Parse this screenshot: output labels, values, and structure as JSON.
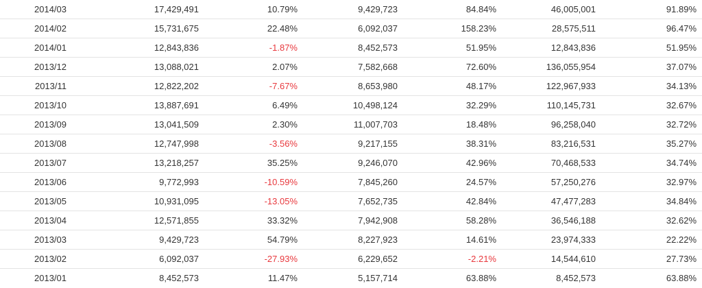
{
  "colors": {
    "text": "#333333",
    "negative": "#e8383d",
    "row_border": "#e3e3e3"
  },
  "rows": [
    {
      "period": "2014/03",
      "value_a": "17,429,491",
      "change_a": "10.79%",
      "value_b": "9,429,723",
      "change_b": "84.84%",
      "value_c": "46,005,001",
      "change_c": "91.89%"
    },
    {
      "period": "2014/02",
      "value_a": "15,731,675",
      "change_a": "22.48%",
      "value_b": "6,092,037",
      "change_b": "158.23%",
      "value_c": "28,575,511",
      "change_c": "96.47%"
    },
    {
      "period": "2014/01",
      "value_a": "12,843,836",
      "change_a": "-1.87%",
      "value_b": "8,452,573",
      "change_b": "51.95%",
      "value_c": "12,843,836",
      "change_c": "51.95%"
    },
    {
      "period": "2013/12",
      "value_a": "13,088,021",
      "change_a": "2.07%",
      "value_b": "7,582,668",
      "change_b": "72.60%",
      "value_c": "136,055,954",
      "change_c": "37.07%"
    },
    {
      "period": "2013/11",
      "value_a": "12,822,202",
      "change_a": "-7.67%",
      "value_b": "8,653,980",
      "change_b": "48.17%",
      "value_c": "122,967,933",
      "change_c": "34.13%"
    },
    {
      "period": "2013/10",
      "value_a": "13,887,691",
      "change_a": "6.49%",
      "value_b": "10,498,124",
      "change_b": "32.29%",
      "value_c": "110,145,731",
      "change_c": "32.67%"
    },
    {
      "period": "2013/09",
      "value_a": "13,041,509",
      "change_a": "2.30%",
      "value_b": "11,007,703",
      "change_b": "18.48%",
      "value_c": "96,258,040",
      "change_c": "32.72%"
    },
    {
      "period": "2013/08",
      "value_a": "12,747,998",
      "change_a": "-3.56%",
      "value_b": "9,217,155",
      "change_b": "38.31%",
      "value_c": "83,216,531",
      "change_c": "35.27%"
    },
    {
      "period": "2013/07",
      "value_a": "13,218,257",
      "change_a": "35.25%",
      "value_b": "9,246,070",
      "change_b": "42.96%",
      "value_c": "70,468,533",
      "change_c": "34.74%"
    },
    {
      "period": "2013/06",
      "value_a": "9,772,993",
      "change_a": "-10.59%",
      "value_b": "7,845,260",
      "change_b": "24.57%",
      "value_c": "57,250,276",
      "change_c": "32.97%"
    },
    {
      "period": "2013/05",
      "value_a": "10,931,095",
      "change_a": "-13.05%",
      "value_b": "7,652,735",
      "change_b": "42.84%",
      "value_c": "47,477,283",
      "change_c": "34.84%"
    },
    {
      "period": "2013/04",
      "value_a": "12,571,855",
      "change_a": "33.32%",
      "value_b": "7,942,908",
      "change_b": "58.28%",
      "value_c": "36,546,188",
      "change_c": "32.62%"
    },
    {
      "period": "2013/03",
      "value_a": "9,429,723",
      "change_a": "54.79%",
      "value_b": "8,227,923",
      "change_b": "14.61%",
      "value_c": "23,974,333",
      "change_c": "22.22%"
    },
    {
      "period": "2013/02",
      "value_a": "6,092,037",
      "change_a": "-27.93%",
      "value_b": "6,229,652",
      "change_b": "-2.21%",
      "value_c": "14,544,610",
      "change_c": "27.73%"
    },
    {
      "period": "2013/01",
      "value_a": "8,452,573",
      "change_a": "11.47%",
      "value_b": "5,157,714",
      "change_b": "63.88%",
      "value_c": "8,452,573",
      "change_c": "63.88%"
    }
  ]
}
